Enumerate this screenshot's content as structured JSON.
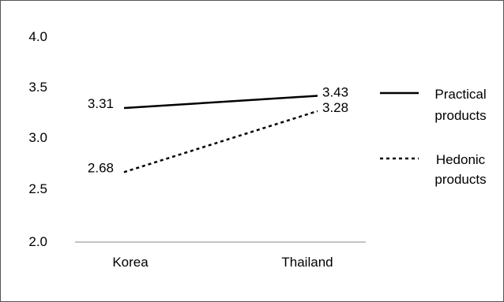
{
  "chart_data": {
    "type": "line",
    "categories": [
      "Korea",
      "Thailand"
    ],
    "y_ticks": [
      "4.0",
      "3.5",
      "3.0",
      "2.5",
      "2.0"
    ],
    "ylim": [
      2.0,
      4.0
    ],
    "grid": false,
    "legend_position": "right",
    "series": [
      {
        "name": "Practical products",
        "name_lines": [
          "Practical",
          "products"
        ],
        "values": [
          3.31,
          3.43
        ],
        "labels": [
          "3.31",
          "3.43"
        ],
        "style": "solid",
        "color": "#000000"
      },
      {
        "name": "Hedonic products",
        "name_lines": [
          "Hedonic",
          "products"
        ],
        "values": [
          2.68,
          3.28
        ],
        "labels": [
          "2.68",
          "3.28"
        ],
        "style": "dotted",
        "color": "#000000"
      }
    ]
  }
}
